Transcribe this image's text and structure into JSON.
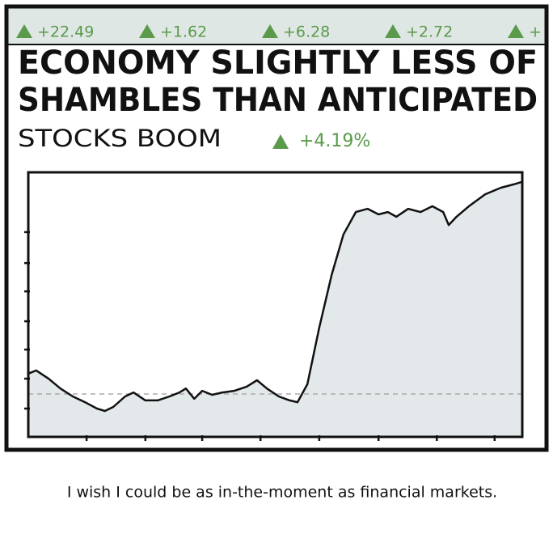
{
  "ticker": [
    {
      "value": "+22.49"
    },
    {
      "value": "+1.62"
    },
    {
      "value": "+6.28"
    },
    {
      "value": "+2.72"
    },
    {
      "value": "+"
    }
  ],
  "headline": [
    "ECONOMY SLIGHTLY LESS OF",
    "SHAMBLES THAN ANTICIPATED"
  ],
  "subheadline": "STOCKS BOOM",
  "change": "+4.19%",
  "chart_data": {
    "type": "area",
    "x": [
      0,
      1.6,
      4.1,
      6.5,
      9.0,
      11.5,
      13.9,
      15.5,
      17.2,
      19.6,
      21.3,
      23.7,
      26.2,
      28.6,
      30.6,
      31.9,
      33.6,
      35.2,
      37.2,
      39.3,
      41.7,
      44.2,
      46.3,
      48.3,
      50.7,
      52.9,
      54.5,
      56.5,
      58.9,
      61.4,
      63.8,
      66.3,
      68.7,
      70.9,
      72.8,
      74.5,
      76.9,
      79.4,
      81.8,
      84.0,
      85.1,
      86.7,
      89.2,
      92.5,
      95.7,
      98.2,
      99.8
    ],
    "values": [
      23.9,
      25.1,
      22.0,
      18.3,
      15.3,
      13.1,
      10.7,
      9.8,
      11.3,
      15.3,
      16.8,
      13.8,
      13.8,
      15.3,
      16.8,
      18.3,
      14.4,
      17.4,
      15.9,
      16.8,
      17.4,
      19.0,
      21.4,
      18.3,
      15.3,
      13.8,
      13.1,
      19.9,
      41.3,
      61.2,
      76.5,
      85.0,
      86.2,
      84.1,
      85.0,
      83.2,
      86.2,
      85.0,
      87.2,
      85.0,
      80.1,
      83.2,
      87.2,
      91.7,
      94.2,
      95.4,
      96.3
    ],
    "baseline": 16.2,
    "color": "#111111",
    "fill": "#e3e8ea",
    "xlim": [
      0,
      100
    ],
    "ylim": [
      0,
      100
    ],
    "xticks": [
      11.8,
      23.7,
      35.2,
      47.0,
      58.9,
      70.9,
      82.7,
      94.4
    ],
    "yticks": [
      10.7,
      22.0,
      33.0,
      43.7,
      55.0,
      65.7,
      77.4
    ]
  },
  "caption": "I wish I could be as in-the-moment as financial markets."
}
